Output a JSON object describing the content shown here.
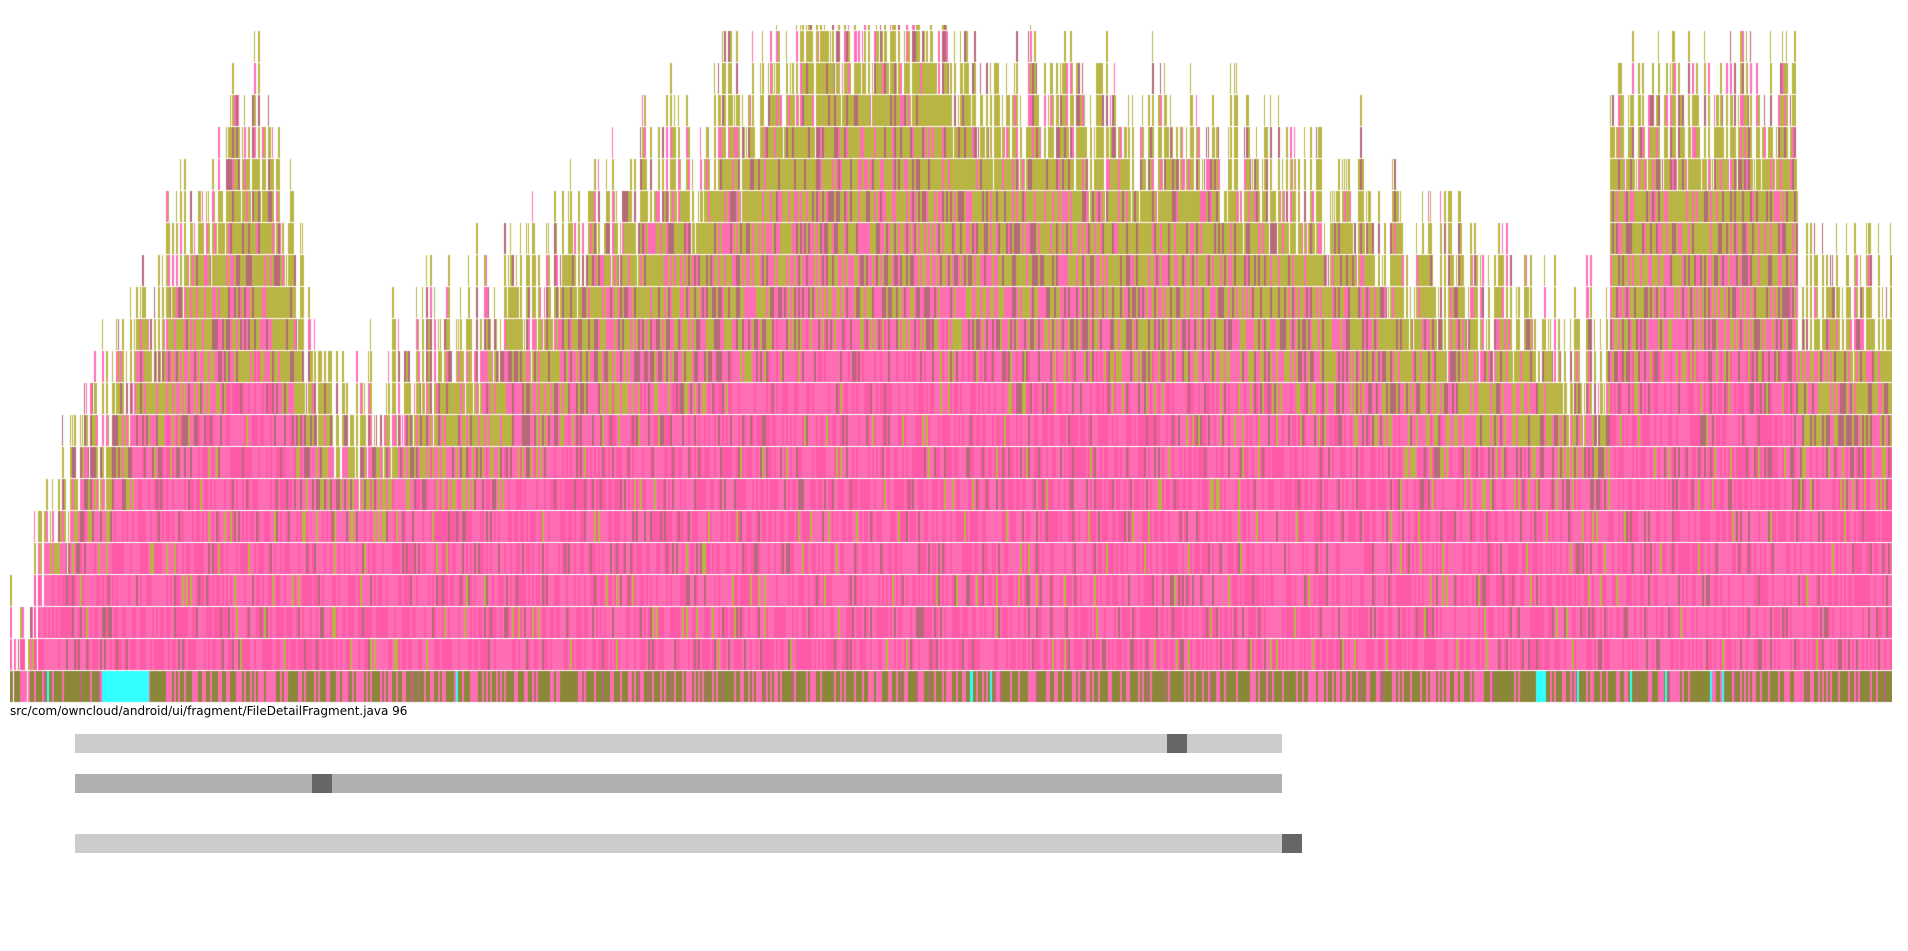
{
  "status_text": "src/com/owncloud/android/ui/fragment/FileDetailFragment.java 96",
  "colors": {
    "pink": "#ff6eb4",
    "pink_deep": "#ff5aa8",
    "olive": "#b9b544",
    "olive_dark": "#8a8838",
    "mauve": "#b46a78",
    "cyan": "#33ffff",
    "track_light": "#cccccc",
    "track_dark": "#b0b0b0",
    "thumb": "#666666"
  },
  "sliders": [
    {
      "name": "slider-top",
      "value": 0.92,
      "track_color": "#cccccc"
    },
    {
      "name": "slider-middle",
      "value": 0.2,
      "track_color": "#b0b0b0"
    },
    {
      "name": "slider-bottom",
      "value": 1.0,
      "track_color": "#cccccc"
    }
  ]
}
